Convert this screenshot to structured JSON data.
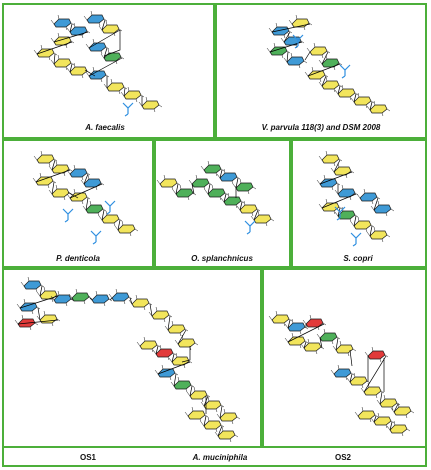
{
  "panels": {
    "a_faecalis": "A. faecalis",
    "v_parvula": "V. parvula 118(3) and DSM 2008",
    "p_denticola": "P. denticola",
    "o_splanchnicus": "O. splanchnicus",
    "s_copri": "S. copri",
    "os1": "OS1",
    "a_muciniphila": "A. muciniphila",
    "os2": "OS2"
  },
  "colors": {
    "frame": "#4caf3a",
    "blue_sugar": "#3f9ad6",
    "yellow_sugar": "#f2e55c",
    "green_sugar": "#4fb05a",
    "red_sugar": "#e23a3a",
    "bond": "#000000",
    "substituent": "#2f8fe0"
  }
}
